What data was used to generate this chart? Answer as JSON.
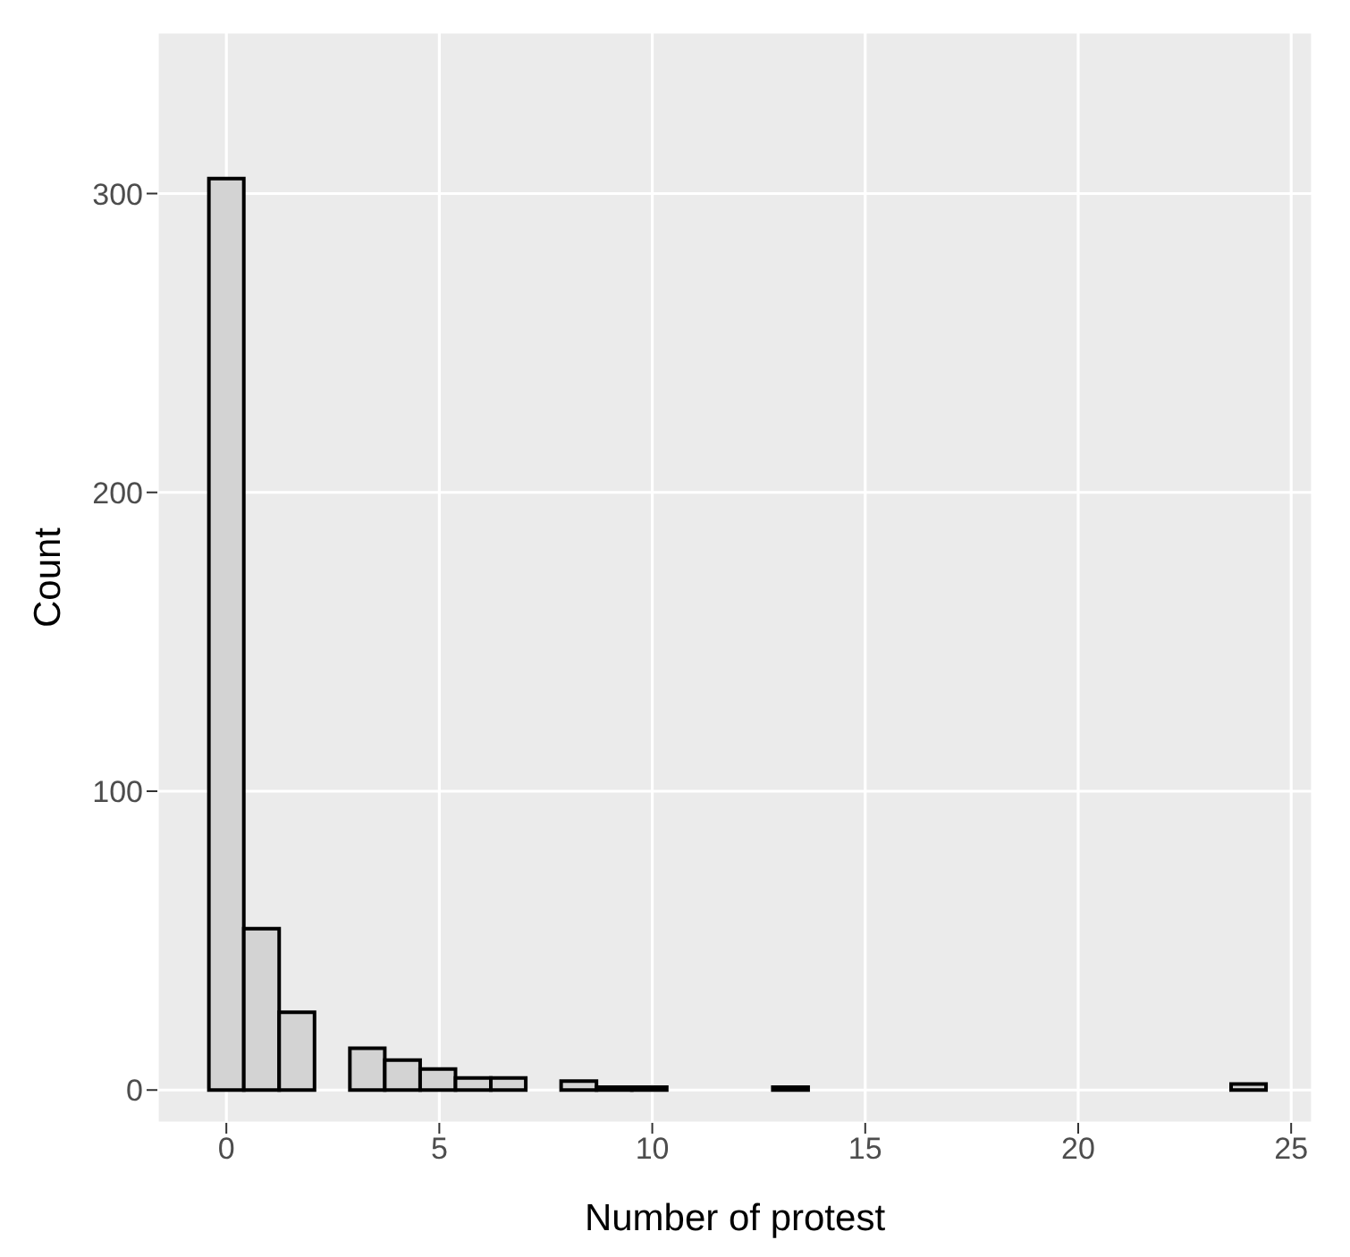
{
  "chart_data": {
    "type": "histogram",
    "xlabel": "Number of protest",
    "ylabel": "Count",
    "bins": [
      -0.41,
      0.41,
      1.24,
      2.07,
      2.9,
      3.72,
      4.55,
      5.38,
      6.21,
      7.03,
      7.86,
      8.69,
      9.52,
      10.34,
      11.17,
      12.0,
      12.83,
      13.66,
      14.48,
      15.31,
      16.14,
      16.97,
      17.79,
      18.62,
      19.45,
      20.28,
      21.1,
      21.93,
      22.76,
      23.59,
      24.41
    ],
    "values": [
      305,
      54,
      26,
      0,
      14,
      10,
      7,
      4,
      4,
      0,
      3,
      1,
      1,
      0,
      0,
      0,
      1,
      0,
      0,
      0,
      0,
      0,
      0,
      0,
      0,
      0,
      0,
      0,
      0,
      2
    ],
    "color": "#d3d3d3",
    "xlim": [
      -1.62,
      25.5
    ],
    "xticks": [
      0,
      5,
      10,
      15,
      20,
      25
    ],
    "ylim": [
      -11,
      354
    ],
    "yticks": [
      0,
      100,
      200,
      300
    ],
    "grid": true
  }
}
